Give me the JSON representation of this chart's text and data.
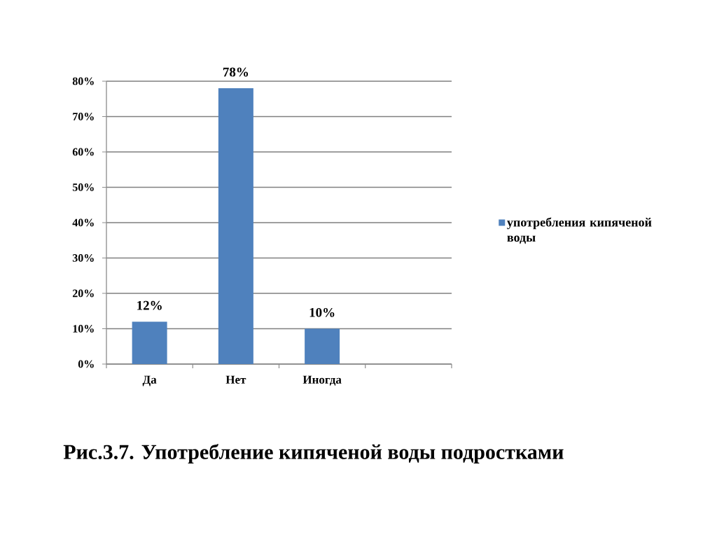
{
  "chart_data": {
    "type": "bar",
    "categories": [
      "Да",
      "Нет",
      "Иногда",
      null
    ],
    "series": [
      {
        "name": "употребления кипяченой воды",
        "color": "#4f81bd",
        "values": [
          12,
          78,
          10,
          null
        ],
        "value_labels": [
          "12%",
          "78%",
          "10%",
          null
        ]
      }
    ],
    "ylim": [
      0,
      80
    ],
    "yticks": [
      {
        "value": 0,
        "label": "0%"
      },
      {
        "value": 10,
        "label": "10%"
      },
      {
        "value": 20,
        "label": "20%"
      },
      {
        "value": 30,
        "label": "30%"
      },
      {
        "value": 40,
        "label": "40%"
      },
      {
        "value": 50,
        "label": "50%"
      },
      {
        "value": 60,
        "label": "60%"
      },
      {
        "value": 70,
        "label": "70%"
      },
      {
        "value": 80,
        "label": "80%"
      }
    ],
    "grid": "y",
    "legend": "right",
    "annotations": [
      "Рис.3.7. Употребление кипяченой воды подростками"
    ]
  }
}
